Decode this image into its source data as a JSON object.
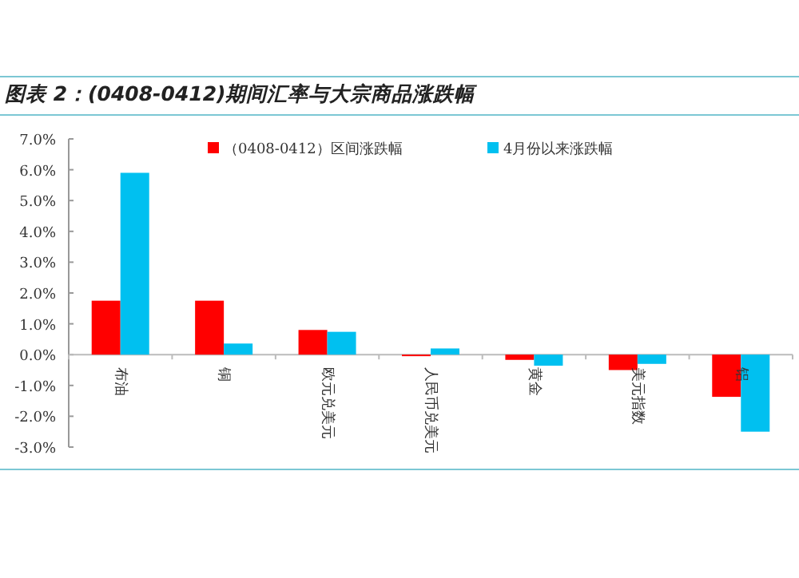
{
  "chart_data": {
    "type": "bar",
    "title": "图表 2：(0408-0412)期间汇率与大宗商品涨跌幅",
    "categories": [
      "布油",
      "铜",
      "欧元兑美元",
      "人民币兑美元",
      "黄金",
      "美元指数",
      "铝"
    ],
    "series": [
      {
        "name": "（0408-0412）区间涨跌幅",
        "color": "#ff0000",
        "values": [
          1.75,
          1.75,
          0.8,
          -0.05,
          -0.17,
          -0.5,
          -1.37
        ]
      },
      {
        "name": "4月份以来涨跌幅",
        "color": "#00c0f0",
        "values": [
          5.9,
          0.36,
          0.74,
          0.2,
          -0.36,
          -0.3,
          -2.5
        ]
      }
    ],
    "ylim": [
      -3,
      7
    ],
    "yticks": [
      {
        "value": -3,
        "label": "-3.0%"
      },
      {
        "value": -2,
        "label": "-2.0%"
      },
      {
        "value": -1,
        "label": "-1.0%"
      },
      {
        "value": 0,
        "label": "0.0%"
      },
      {
        "value": 1,
        "label": "1.0%"
      },
      {
        "value": 2,
        "label": "2.0%"
      },
      {
        "value": 3,
        "label": "3.0%"
      },
      {
        "value": 4,
        "label": "4.0%"
      },
      {
        "value": 5,
        "label": "5.0%"
      },
      {
        "value": 6,
        "label": "6.0%"
      },
      {
        "value": 7,
        "label": "7.0%"
      }
    ],
    "legend": "top",
    "grid": false
  }
}
